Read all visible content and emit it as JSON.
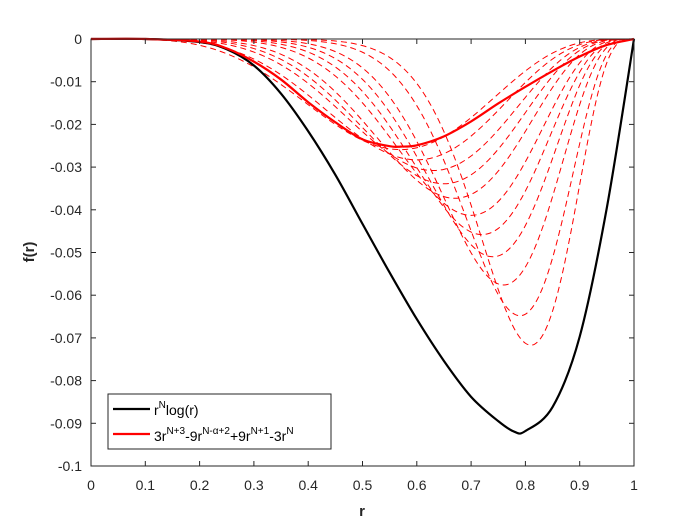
{
  "chart_data": {
    "type": "line",
    "xlabel": "r",
    "ylabel": "f(r)",
    "xlim": [
      0,
      1
    ],
    "ylim": [
      -0.1,
      0
    ],
    "xticks": [
      "0",
      "0.1",
      "0.2",
      "0.3",
      "0.4",
      "0.5",
      "0.6",
      "0.7",
      "0.8",
      "0.9",
      "1"
    ],
    "yticks": [
      "0",
      "-0.01",
      "-0.02",
      "-0.03",
      "-0.04",
      "-0.05",
      "-0.06",
      "-0.07",
      "-0.08",
      "-0.09",
      "-0.1"
    ],
    "legend_position": "bottom-left",
    "colors": {
      "black_series": "#000000",
      "red_series": "#ff0000",
      "axes": "#262626"
    },
    "series": [
      {
        "name_base": "r",
        "name_sup": "N",
        "name_rest": "log(r)",
        "color": "#000000",
        "style": "solid",
        "x": [
          0,
          0.1,
          0.2,
          0.25,
          0.3,
          0.35,
          0.4,
          0.45,
          0.5,
          0.55,
          0.6,
          0.65,
          0.7,
          0.75,
          0.78,
          0.8,
          0.85,
          0.9,
          0.95,
          1
        ],
        "y": [
          0,
          0,
          -0.0007,
          -0.0024,
          -0.0062,
          -0.0128,
          -0.0216,
          -0.0318,
          -0.0433,
          -0.0547,
          -0.0656,
          -0.0754,
          -0.0838,
          -0.0895,
          -0.092,
          -0.0918,
          -0.0862,
          -0.0697,
          -0.0395,
          0
        ]
      },
      {
        "name_parts": [
          "3r",
          "N+3",
          "-9r",
          "N-α+2",
          "+9r",
          "N+1",
          "-3r",
          "N"
        ],
        "color": "#ff0000",
        "style": "solid",
        "x": [
          0,
          0.1,
          0.2,
          0.25,
          0.3,
          0.35,
          0.4,
          0.45,
          0.5,
          0.55,
          0.57,
          0.6,
          0.65,
          0.7,
          0.75,
          0.8,
          0.85,
          0.9,
          0.95,
          1
        ],
        "y": [
          0,
          0,
          -0.0006,
          -0.0022,
          -0.0053,
          -0.0095,
          -0.0148,
          -0.0195,
          -0.0235,
          -0.0251,
          -0.0252,
          -0.0249,
          -0.0228,
          -0.0193,
          -0.0151,
          -0.0112,
          -0.0075,
          -0.0041,
          -0.0014,
          0
        ]
      }
    ],
    "dashed_family": {
      "color": "#ff0000",
      "style": "dashed",
      "count": 11,
      "minima": [
        {
          "x": 0.57,
          "y": -0.0259
        },
        {
          "x": 0.6,
          "y": -0.0283
        },
        {
          "x": 0.63,
          "y": -0.0308
        },
        {
          "x": 0.65,
          "y": -0.0339
        },
        {
          "x": 0.67,
          "y": -0.0373
        },
        {
          "x": 0.7,
          "y": -0.0413
        },
        {
          "x": 0.72,
          "y": -0.0458
        },
        {
          "x": 0.74,
          "y": -0.051
        },
        {
          "x": 0.76,
          "y": -0.0576
        },
        {
          "x": 0.79,
          "y": -0.0648
        },
        {
          "x": 0.81,
          "y": -0.0717
        }
      ]
    }
  }
}
